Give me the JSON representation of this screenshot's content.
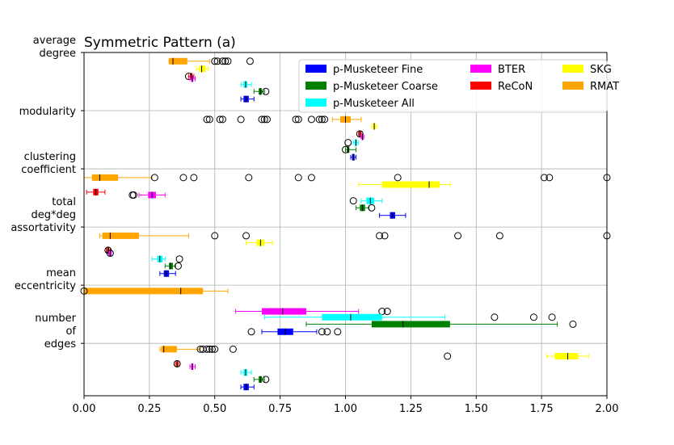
{
  "chart_data": {
    "type": "boxplot-horizontal",
    "title": "Symmetric Pattern (a)",
    "xlim": [
      0,
      2
    ],
    "x_ticks": [
      "0.00",
      "0.25",
      "0.50",
      "0.75",
      "1.00",
      "1.25",
      "1.50",
      "1.75",
      "2.00"
    ],
    "grid": true,
    "legend_position": "top-right",
    "groups": [
      {
        "label_lines": [
          "average",
          "degree"
        ]
      },
      {
        "label_lines": [
          "modularity"
        ]
      },
      {
        "label_lines": [
          "clustering",
          "coefficient"
        ]
      },
      {
        "label_lines": [
          "total",
          "deg*deg",
          "assortativity"
        ]
      },
      {
        "label_lines": [
          "mean",
          "eccentricity"
        ]
      },
      {
        "label_lines": [
          "number",
          "of",
          "edges"
        ]
      }
    ],
    "series": [
      {
        "name": "p-Musketeer Fine",
        "color": "#0000ff"
      },
      {
        "name": "p-Musketeer Coarse",
        "color": "#008000"
      },
      {
        "name": "p-Musketeer All",
        "color": "#00ffff"
      },
      {
        "name": "BTER",
        "color": "#ff00ff"
      },
      {
        "name": "ReCoN",
        "color": "#ff0000"
      },
      {
        "name": "SKG",
        "color": "#ffff00"
      },
      {
        "name": "RMAT",
        "color": "#ffa500"
      }
    ],
    "boxes": [
      {
        "series": "RMAT",
        "group": 0,
        "y": 2.85,
        "whisker_lo": 0.325,
        "q1": 0.325,
        "median": 0.34,
        "q3": 0.395,
        "whisker_hi": 0.48,
        "outliers": [
          0.5,
          0.51,
          0.53,
          0.54,
          0.55,
          0.635
        ]
      },
      {
        "series": "SKG",
        "group": 0,
        "y": 2.72,
        "whisker_lo": 0.43,
        "q1": 0.44,
        "median": 0.45,
        "q3": 0.465,
        "whisker_hi": 0.475,
        "outliers": []
      },
      {
        "series": "ReCoN",
        "group": 0,
        "y": 2.59,
        "whisker_lo": 0.4,
        "q1": 0.405,
        "median": 0.41,
        "q3": 0.415,
        "whisker_hi": 0.42,
        "outliers": [
          0.4
        ]
      },
      {
        "series": "BTER",
        "group": 0,
        "y": 2.55,
        "whisker_lo": 0.405,
        "q1": 0.41,
        "median": 0.414,
        "q3": 0.418,
        "whisker_hi": 0.425,
        "outliers": []
      },
      {
        "series": "p-Musketeer All",
        "group": 0,
        "y": 2.45,
        "whisker_lo": 0.6,
        "q1": 0.61,
        "median": 0.618,
        "q3": 0.625,
        "whisker_hi": 0.64,
        "outliers": []
      },
      {
        "series": "p-Musketeer Coarse",
        "group": 0,
        "y": 2.33,
        "whisker_lo": 0.65,
        "q1": 0.668,
        "median": 0.675,
        "q3": 0.68,
        "whisker_hi": 0.69,
        "outliers": [
          0.695
        ]
      },
      {
        "series": "p-Musketeer Fine",
        "group": 0,
        "y": 2.2,
        "whisker_lo": 0.6,
        "q1": 0.61,
        "median": 0.62,
        "q3": 0.63,
        "whisker_hi": 0.65,
        "outliers": []
      },
      {
        "series": "RMAT",
        "group": 1,
        "y": 1.85,
        "whisker_lo": 0.95,
        "q1": 0.98,
        "median": 1.0,
        "q3": 1.02,
        "whisker_hi": 1.06,
        "outliers": [
          0.47,
          0.48,
          0.52,
          0.53,
          0.6,
          0.68,
          0.69,
          0.7,
          0.81,
          0.82,
          0.87,
          0.9,
          0.91,
          0.92
        ]
      },
      {
        "series": "SKG",
        "group": 1,
        "y": 1.73,
        "whisker_lo": 1.1,
        "q1": 1.105,
        "median": 1.11,
        "q3": 1.115,
        "whisker_hi": 1.12,
        "outliers": []
      },
      {
        "series": "ReCoN",
        "group": 1,
        "y": 1.6,
        "whisker_lo": 1.05,
        "q1": 1.052,
        "median": 1.055,
        "q3": 1.058,
        "whisker_hi": 1.06,
        "outliers": [
          1.055
        ]
      },
      {
        "series": "BTER",
        "group": 1,
        "y": 1.55,
        "whisker_lo": 1.06,
        "q1": 1.062,
        "median": 1.065,
        "q3": 1.068,
        "whisker_hi": 1.07,
        "outliers": []
      },
      {
        "series": "p-Musketeer All",
        "group": 1,
        "y": 1.45,
        "whisker_lo": 1.03,
        "q1": 1.035,
        "median": 1.04,
        "q3": 1.045,
        "whisker_hi": 1.05,
        "outliers": [
          1.01
        ]
      },
      {
        "series": "p-Musketeer Coarse",
        "group": 1,
        "y": 1.33,
        "whisker_lo": 1.0,
        "q1": 1.005,
        "median": 1.01,
        "q3": 1.015,
        "whisker_hi": 1.04,
        "outliers": [
          1.0
        ]
      },
      {
        "series": "p-Musketeer Fine",
        "group": 1,
        "y": 1.2,
        "whisker_lo": 1.02,
        "q1": 1.025,
        "median": 1.03,
        "q3": 1.035,
        "whisker_hi": 1.04,
        "outliers": []
      },
      {
        "series": "RMAT",
        "group": 2,
        "y": 0.85,
        "whisker_lo": 0.0,
        "q1": 0.03,
        "median": 0.06,
        "q3": 0.13,
        "whisker_hi": 0.26,
        "outliers": [
          0.27,
          0.38,
          0.42,
          0.63,
          0.82,
          0.87,
          1.2,
          1.76,
          1.78,
          2.0
        ]
      },
      {
        "series": "SKG",
        "group": 2,
        "y": 0.73,
        "whisker_lo": 1.05,
        "q1": 1.14,
        "median": 1.32,
        "q3": 1.36,
        "whisker_hi": 1.4,
        "outliers": []
      },
      {
        "series": "ReCoN",
        "group": 2,
        "y": 0.6,
        "whisker_lo": 0.01,
        "q1": 0.035,
        "median": 0.045,
        "q3": 0.055,
        "whisker_hi": 0.08,
        "outliers": []
      },
      {
        "series": "BTER",
        "group": 2,
        "y": 0.55,
        "whisker_lo": 0.21,
        "q1": 0.245,
        "median": 0.26,
        "q3": 0.275,
        "whisker_hi": 0.31,
        "outliers": [
          0.185,
          0.19
        ]
      },
      {
        "series": "p-Musketeer All",
        "group": 2,
        "y": 0.45,
        "whisker_lo": 1.06,
        "q1": 1.08,
        "median": 1.095,
        "q3": 1.11,
        "whisker_hi": 1.14,
        "outliers": [
          1.03
        ]
      },
      {
        "series": "p-Musketeer Coarse",
        "group": 2,
        "y": 0.33,
        "whisker_lo": 1.04,
        "q1": 1.055,
        "median": 1.065,
        "q3": 1.075,
        "whisker_hi": 1.09,
        "outliers": [
          1.1
        ]
      },
      {
        "series": "p-Musketeer Fine",
        "group": 2,
        "y": 0.2,
        "whisker_lo": 1.13,
        "q1": 1.17,
        "median": 1.18,
        "q3": 1.19,
        "whisker_hi": 1.23,
        "outliers": []
      },
      {
        "series": "RMAT",
        "group": 3,
        "y": -0.15,
        "whisker_lo": 0.06,
        "q1": 0.07,
        "median": 0.1,
        "q3": 0.21,
        "whisker_hi": 0.4,
        "outliers": [
          0.5,
          0.62,
          1.13,
          1.15,
          1.43,
          1.59,
          2.0
        ]
      },
      {
        "series": "SKG",
        "group": 3,
        "y": -0.27,
        "whisker_lo": 0.62,
        "q1": 0.66,
        "median": 0.675,
        "q3": 0.69,
        "whisker_hi": 0.72,
        "outliers": []
      },
      {
        "series": "ReCoN",
        "group": 3,
        "y": -0.4,
        "whisker_lo": 0.085,
        "q1": 0.088,
        "median": 0.092,
        "q3": 0.096,
        "whisker_hi": 0.1,
        "outliers": [
          0.092
        ]
      },
      {
        "series": "BTER",
        "group": 3,
        "y": -0.45,
        "whisker_lo": 0.095,
        "q1": 0.097,
        "median": 0.1,
        "q3": 0.103,
        "whisker_hi": 0.105,
        "outliers": [
          0.1
        ]
      },
      {
        "series": "p-Musketeer All",
        "group": 3,
        "y": -0.55,
        "whisker_lo": 0.26,
        "q1": 0.28,
        "median": 0.29,
        "q3": 0.3,
        "whisker_hi": 0.31,
        "outliers": [
          0.365
        ]
      },
      {
        "series": "p-Musketeer Coarse",
        "group": 3,
        "y": -0.67,
        "whisker_lo": 0.31,
        "q1": 0.325,
        "median": 0.33,
        "q3": 0.34,
        "whisker_hi": 0.35,
        "outliers": [
          0.36
        ]
      },
      {
        "series": "p-Musketeer Fine",
        "group": 3,
        "y": -0.8,
        "whisker_lo": 0.29,
        "q1": 0.305,
        "median": 0.315,
        "q3": 0.325,
        "whisker_hi": 0.35,
        "outliers": []
      },
      {
        "series": "RMAT",
        "group": 4,
        "y": -1.1,
        "whisker_lo": 0.0,
        "q1": 0.0,
        "median": 0.37,
        "q3": 0.455,
        "whisker_hi": 0.55,
        "outliers": [
          0.0
        ]
      },
      {
        "series": "BTER",
        "group": 4,
        "y": -1.45,
        "whisker_lo": 0.58,
        "q1": 0.68,
        "median": 0.76,
        "q3": 0.85,
        "whisker_hi": 1.05,
        "outliers": [
          1.14,
          1.16
        ]
      },
      {
        "series": "p-Musketeer All",
        "group": 4,
        "y": -1.55,
        "whisker_lo": 0.69,
        "q1": 0.91,
        "median": 1.02,
        "q3": 1.14,
        "whisker_hi": 1.38,
        "outliers": [
          1.57,
          1.72,
          1.79
        ]
      },
      {
        "series": "p-Musketeer Coarse",
        "group": 4,
        "y": -1.67,
        "whisker_lo": 0.85,
        "q1": 1.1,
        "median": 1.22,
        "q3": 1.4,
        "whisker_hi": 1.81,
        "outliers": [
          1.87
        ]
      },
      {
        "series": "p-Musketeer Fine",
        "group": 4,
        "y": -1.8,
        "whisker_lo": 0.68,
        "q1": 0.74,
        "median": 0.77,
        "q3": 0.8,
        "whisker_hi": 0.89,
        "outliers": [
          0.64,
          0.91,
          0.93,
          0.97
        ]
      },
      {
        "series": "RMAT",
        "group": 5,
        "y": -2.1,
        "whisker_lo": 0.29,
        "q1": 0.295,
        "median": 0.305,
        "q3": 0.355,
        "whisker_hi": 0.44,
        "outliers": [
          0.445,
          0.455,
          0.47,
          0.48,
          0.49,
          0.5,
          0.57
        ]
      },
      {
        "series": "SKG",
        "group": 5,
        "y": -2.22,
        "whisker_lo": 1.77,
        "q1": 1.8,
        "median": 1.85,
        "q3": 1.89,
        "whisker_hi": 1.93,
        "outliers": [
          1.39
        ]
      },
      {
        "series": "ReCoN",
        "group": 5,
        "y": -2.35,
        "whisker_lo": 0.35,
        "q1": 0.353,
        "median": 0.356,
        "q3": 0.359,
        "whisker_hi": 0.362,
        "outliers": [
          0.356
        ]
      },
      {
        "series": "BTER",
        "group": 5,
        "y": -2.4,
        "whisker_lo": 0.405,
        "q1": 0.41,
        "median": 0.414,
        "q3": 0.418,
        "whisker_hi": 0.425,
        "outliers": []
      },
      {
        "series": "p-Musketeer All",
        "group": 5,
        "y": -2.5,
        "whisker_lo": 0.6,
        "q1": 0.61,
        "median": 0.618,
        "q3": 0.625,
        "whisker_hi": 0.64,
        "outliers": []
      },
      {
        "series": "p-Musketeer Coarse",
        "group": 5,
        "y": -2.62,
        "whisker_lo": 0.65,
        "q1": 0.668,
        "median": 0.675,
        "q3": 0.68,
        "whisker_hi": 0.69,
        "outliers": [
          0.695
        ]
      },
      {
        "series": "p-Musketeer Fine",
        "group": 5,
        "y": -2.75,
        "whisker_lo": 0.6,
        "q1": 0.61,
        "median": 0.62,
        "q3": 0.63,
        "whisker_hi": 0.65,
        "outliers": []
      }
    ],
    "ylim": [
      -2.9,
      3.0
    ],
    "group_y": [
      3.0,
      2.0,
      1.0,
      0.0,
      -1.0,
      -2.0
    ]
  }
}
